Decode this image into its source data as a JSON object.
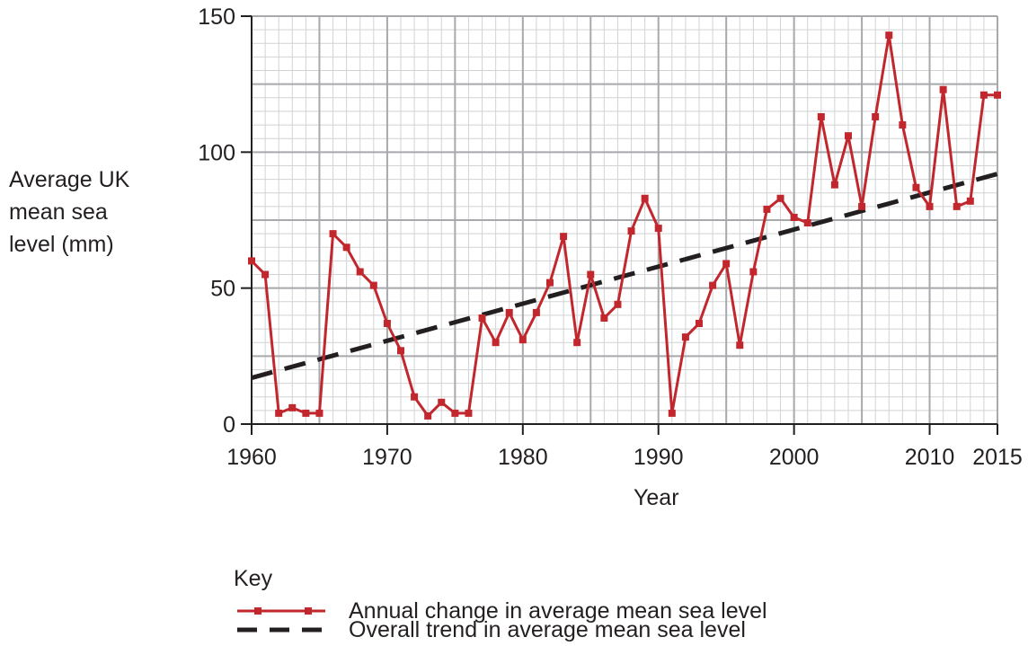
{
  "chart_data": {
    "type": "line",
    "y_axis_title": [
      "Average UK",
      "mean sea",
      "level (mm)"
    ],
    "xlabel": "Year",
    "xlim": [
      1960,
      2015
    ],
    "ylim": [
      0,
      150
    ],
    "x_ticks": [
      1960,
      1970,
      1980,
      1990,
      2000,
      2010,
      2015
    ],
    "y_ticks": [
      0,
      50,
      100,
      150
    ],
    "grid": true,
    "legend_title": "Key",
    "legend_placement": "bottom",
    "colors": {
      "annual": "#c1272d",
      "trend": "#231f20",
      "grid_major": "#a7a9ac",
      "grid_minor": "#d1d3d4"
    },
    "series": [
      {
        "name": "Annual change in average mean sea level",
        "style": "solid-with-square-markers",
        "x": [
          1960,
          1961,
          1962,
          1963,
          1964,
          1965,
          1966,
          1967,
          1968,
          1969,
          1970,
          1971,
          1972,
          1973,
          1974,
          1975,
          1976,
          1977,
          1978,
          1979,
          1980,
          1981,
          1982,
          1983,
          1984,
          1985,
          1986,
          1987,
          1988,
          1989,
          1990,
          1991,
          1992,
          1993,
          1994,
          1995,
          1996,
          1997,
          1998,
          1999,
          2000,
          2001,
          2002,
          2003,
          2004,
          2005,
          2006,
          2007,
          2008,
          2009,
          2010,
          2011,
          2012,
          2013,
          2014,
          2015
        ],
        "values": [
          60,
          55,
          4,
          6,
          4,
          4,
          70,
          65,
          56,
          51,
          37,
          27,
          10,
          3,
          8,
          4,
          4,
          39,
          30,
          41,
          31,
          41,
          52,
          69,
          30,
          55,
          39,
          44,
          71,
          83,
          72,
          4,
          32,
          37,
          51,
          59,
          29,
          56,
          79,
          83,
          76,
          74,
          113,
          88,
          106,
          80,
          113,
          143,
          110,
          87,
          80,
          123,
          80,
          82,
          121,
          121
        ]
      },
      {
        "name": "Overall trend in average mean sea level",
        "style": "dashed",
        "x": [
          1960,
          2015
        ],
        "values": [
          17,
          92
        ]
      }
    ]
  }
}
